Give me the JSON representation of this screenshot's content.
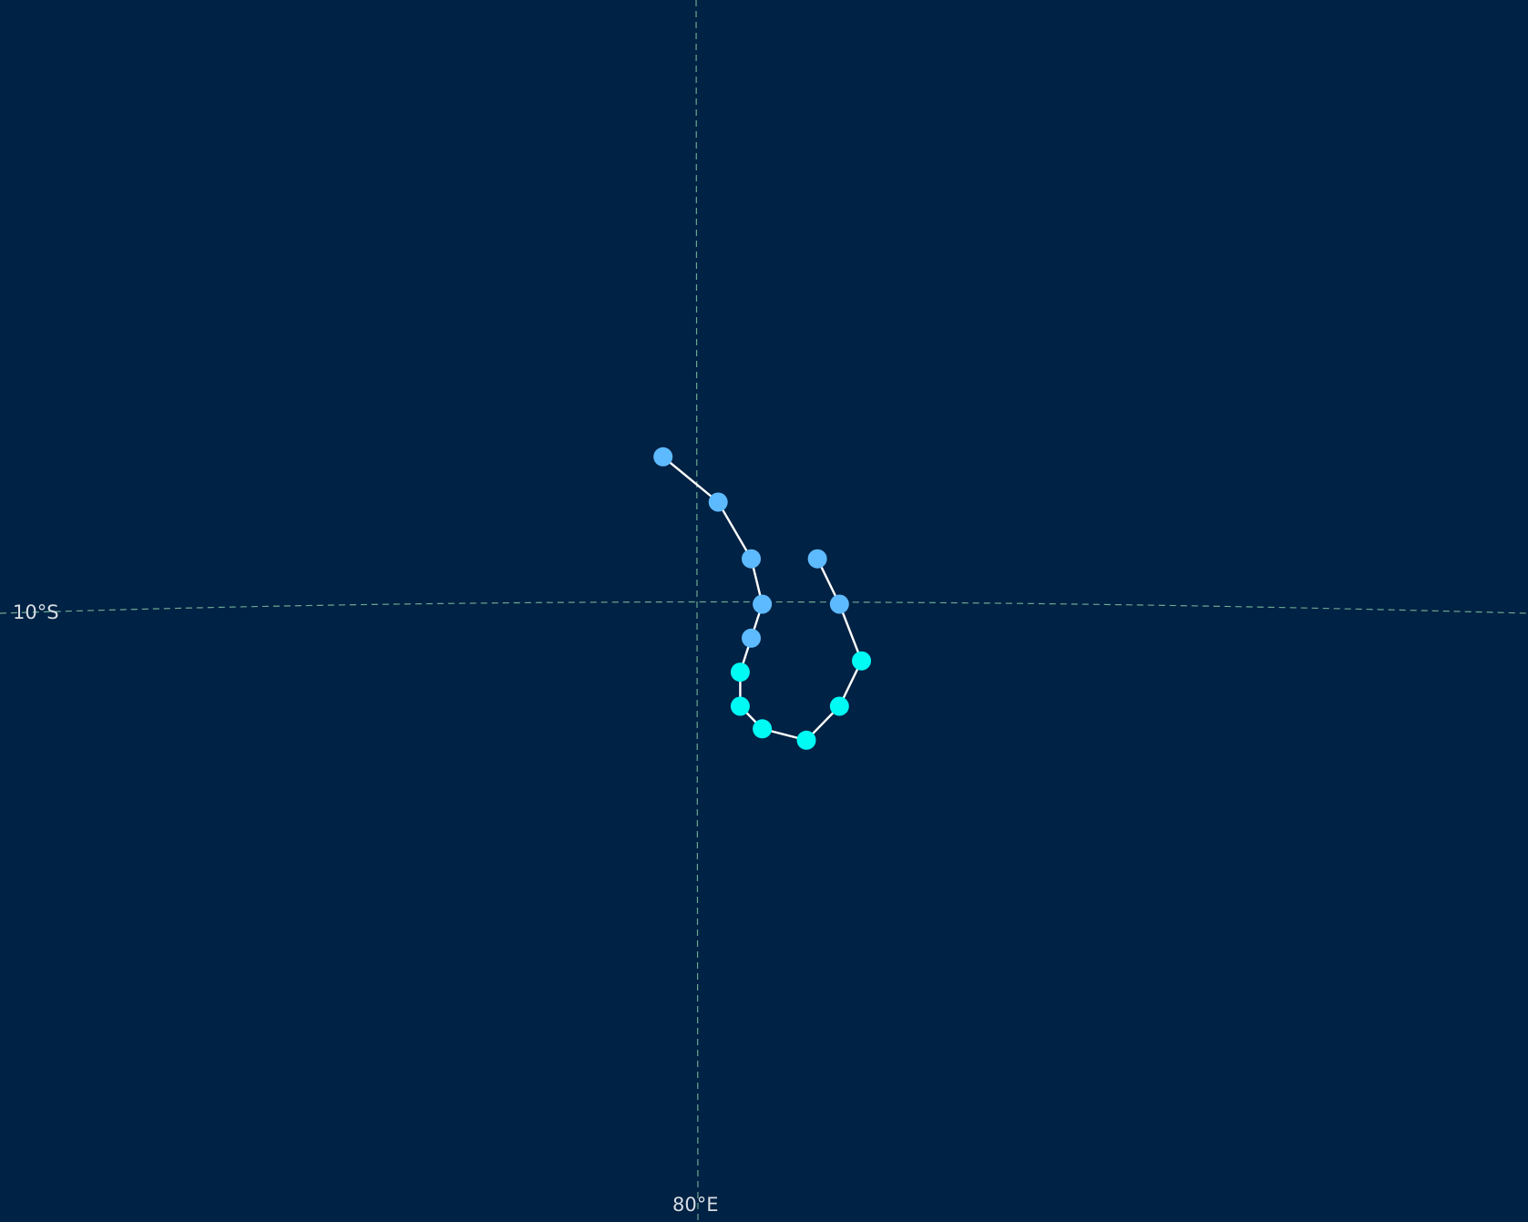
{
  "map": {
    "background_color": "#002244",
    "graticule_color": "#7fbfa0",
    "track_line_color": "#ffffff",
    "gridlines": {
      "latitude_label": "10°S",
      "longitude_label": "80°E"
    },
    "legend": {
      "categories": [
        {
          "key": "td",
          "color": "#5ebaff"
        },
        {
          "key": "ts",
          "color": "#00faf4"
        }
      ]
    },
    "track": [
      {
        "lon": 79.4,
        "lat": -7.4,
        "category": "td"
      },
      {
        "lon": 80.4,
        "lat": -8.2,
        "category": "td"
      },
      {
        "lon": 81.0,
        "lat": -9.2,
        "category": "td"
      },
      {
        "lon": 81.2,
        "lat": -10.0,
        "category": "td"
      },
      {
        "lon": 81.0,
        "lat": -10.6,
        "category": "td"
      },
      {
        "lon": 80.8,
        "lat": -11.2,
        "category": "ts"
      },
      {
        "lon": 80.8,
        "lat": -11.8,
        "category": "ts"
      },
      {
        "lon": 81.2,
        "lat": -12.2,
        "category": "ts"
      },
      {
        "lon": 82.0,
        "lat": -12.4,
        "category": "ts"
      },
      {
        "lon": 82.6,
        "lat": -11.8,
        "category": "ts"
      },
      {
        "lon": 83.0,
        "lat": -11.0,
        "category": "ts"
      },
      {
        "lon": 82.6,
        "lat": -10.0,
        "category": "td"
      },
      {
        "lon": 82.2,
        "lat": -9.2,
        "category": "td"
      }
    ]
  }
}
